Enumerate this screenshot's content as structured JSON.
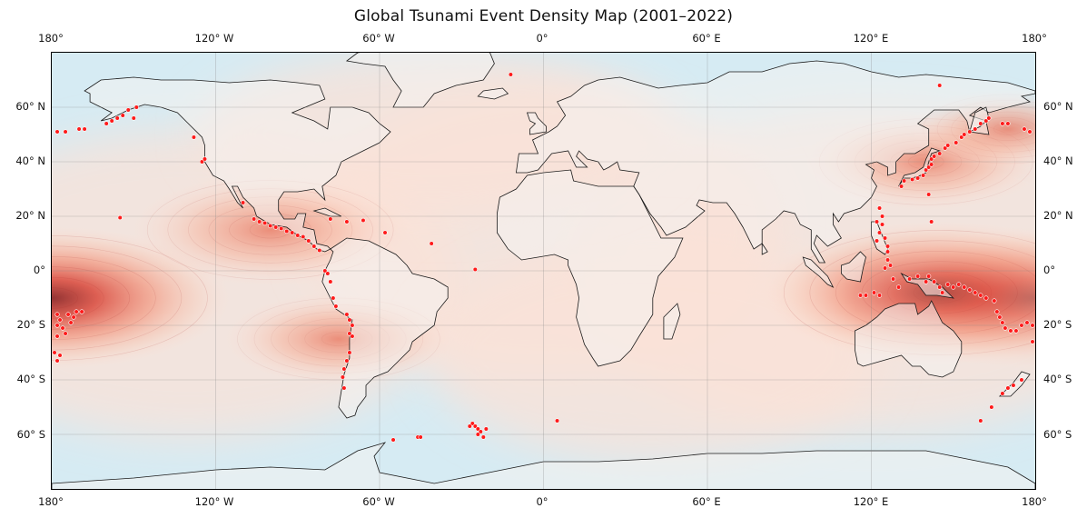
{
  "title": "Global Tsunami Event Density Map (2001–2022)",
  "lon_ticks": [
    "180°",
    "120° W",
    "60° W",
    "0°",
    "60° E",
    "120° E",
    "180°"
  ],
  "lat_ticks": [
    "60° N",
    "40° N",
    "20° N",
    "0°",
    "20° S",
    "40° S",
    "60° S"
  ],
  "colors": {
    "ocean": "#d6ebf3",
    "land": "#f2f2f2",
    "event": "#ff1a1a",
    "density_low": "#fde4da",
    "density_high": "#c0392b"
  },
  "chart_data": {
    "type": "scatter",
    "projection": "equirectangular",
    "lon_range": [
      -180,
      180
    ],
    "lat_range": [
      -80,
      80
    ],
    "density_hotspots": [
      {
        "lon": -180,
        "lat": -10,
        "intensity": 1.0
      },
      {
        "lon": 145,
        "lat": -8,
        "intensity": 1.0
      },
      {
        "lon": -100,
        "lat": 15,
        "intensity": 0.7
      },
      {
        "lon": -75,
        "lat": -25,
        "intensity": 0.5
      },
      {
        "lon": 140,
        "lat": 40,
        "intensity": 0.55
      },
      {
        "lon": 170,
        "lat": 52,
        "intensity": 0.35
      }
    ],
    "events": [
      {
        "lon": -178,
        "lat": 51
      },
      {
        "lon": -175,
        "lat": 51
      },
      {
        "lon": -170,
        "lat": 52
      },
      {
        "lon": -168,
        "lat": 52
      },
      {
        "lon": -160,
        "lat": 54
      },
      {
        "lon": -158,
        "lat": 55
      },
      {
        "lon": -156,
        "lat": 56
      },
      {
        "lon": -154,
        "lat": 57
      },
      {
        "lon": -152,
        "lat": 59
      },
      {
        "lon": -149,
        "lat": 60
      },
      {
        "lon": -150,
        "lat": 56
      },
      {
        "lon": -128,
        "lat": 49
      },
      {
        "lon": -125,
        "lat": 40
      },
      {
        "lon": -124,
        "lat": 41
      },
      {
        "lon": -155,
        "lat": 19.5
      },
      {
        "lon": -110,
        "lat": 25
      },
      {
        "lon": -106,
        "lat": 19
      },
      {
        "lon": -104,
        "lat": 18
      },
      {
        "lon": -102,
        "lat": 17.5
      },
      {
        "lon": -100,
        "lat": 16.5
      },
      {
        "lon": -98,
        "lat": 16
      },
      {
        "lon": -96,
        "lat": 15.5
      },
      {
        "lon": -94,
        "lat": 14.5
      },
      {
        "lon": -92,
        "lat": 14
      },
      {
        "lon": -90,
        "lat": 13
      },
      {
        "lon": -88,
        "lat": 12.5
      },
      {
        "lon": -86,
        "lat": 11
      },
      {
        "lon": -84,
        "lat": 9
      },
      {
        "lon": -82,
        "lat": 7.5
      },
      {
        "lon": -78,
        "lat": 19
      },
      {
        "lon": -72,
        "lat": 18
      },
      {
        "lon": -66,
        "lat": 18.5
      },
      {
        "lon": -58,
        "lat": 14
      },
      {
        "lon": -41,
        "lat": 10
      },
      {
        "lon": -25,
        "lat": 0.5
      },
      {
        "lon": -80,
        "lat": 0
      },
      {
        "lon": -79,
        "lat": -1
      },
      {
        "lon": -78,
        "lat": -4
      },
      {
        "lon": -77,
        "lat": -10
      },
      {
        "lon": -76,
        "lat": -13
      },
      {
        "lon": -72,
        "lat": -16
      },
      {
        "lon": -71,
        "lat": -18
      },
      {
        "lon": -71,
        "lat": -23
      },
      {
        "lon": -70,
        "lat": -24
      },
      {
        "lon": -71,
        "lat": -30
      },
      {
        "lon": -72,
        "lat": -33
      },
      {
        "lon": -73,
        "lat": -36
      },
      {
        "lon": -73.5,
        "lat": -39
      },
      {
        "lon": -73,
        "lat": -43
      },
      {
        "lon": -70,
        "lat": -20
      },
      {
        "lon": -178,
        "lat": -16
      },
      {
        "lon": -177,
        "lat": -18
      },
      {
        "lon": -178,
        "lat": -20
      },
      {
        "lon": -176,
        "lat": -21
      },
      {
        "lon": -174,
        "lat": -16
      },
      {
        "lon": -173,
        "lat": -19
      },
      {
        "lon": -171,
        "lat": -15
      },
      {
        "lon": -175,
        "lat": -23
      },
      {
        "lon": -178,
        "lat": -24
      },
      {
        "lon": -179,
        "lat": -30
      },
      {
        "lon": -177,
        "lat": -31
      },
      {
        "lon": -178,
        "lat": -33
      },
      {
        "lon": -169,
        "lat": -15
      },
      {
        "lon": -172,
        "lat": -17
      },
      {
        "lon": -26,
        "lat": -56
      },
      {
        "lon": -25,
        "lat": -57
      },
      {
        "lon": -24,
        "lat": -58
      },
      {
        "lon": -23,
        "lat": -59
      },
      {
        "lon": -24,
        "lat": -60
      },
      {
        "lon": -22,
        "lat": -61
      },
      {
        "lon": -21,
        "lat": -58
      },
      {
        "lon": -27,
        "lat": -57
      },
      {
        "lon": -46,
        "lat": -61
      },
      {
        "lon": -45,
        "lat": -61
      },
      {
        "lon": -55,
        "lat": -62
      },
      {
        "lon": 5,
        "lat": -55
      },
      {
        "lon": 123,
        "lat": 23
      },
      {
        "lon": 122,
        "lat": 18
      },
      {
        "lon": 123,
        "lat": 14
      },
      {
        "lon": 125,
        "lat": 12
      },
      {
        "lon": 126,
        "lat": 9
      },
      {
        "lon": 126,
        "lat": 7
      },
      {
        "lon": 126,
        "lat": 4
      },
      {
        "lon": 125,
        "lat": 1
      },
      {
        "lon": 127,
        "lat": 2
      },
      {
        "lon": 124,
        "lat": 20
      },
      {
        "lon": 124,
        "lat": 17
      },
      {
        "lon": 122,
        "lat": 11
      },
      {
        "lon": 128,
        "lat": -3
      },
      {
        "lon": 130,
        "lat": -6
      },
      {
        "lon": 134,
        "lat": -3
      },
      {
        "lon": 137,
        "lat": -2
      },
      {
        "lon": 140,
        "lat": -4
      },
      {
        "lon": 143,
        "lat": -4
      },
      {
        "lon": 145,
        "lat": -6
      },
      {
        "lon": 148,
        "lat": -5
      },
      {
        "lon": 150,
        "lat": -6
      },
      {
        "lon": 152,
        "lat": -5
      },
      {
        "lon": 154,
        "lat": -6
      },
      {
        "lon": 156,
        "lat": -7
      },
      {
        "lon": 158,
        "lat": -8
      },
      {
        "lon": 160,
        "lat": -9
      },
      {
        "lon": 162,
        "lat": -10
      },
      {
        "lon": 165,
        "lat": -11
      },
      {
        "lon": 166,
        "lat": -15
      },
      {
        "lon": 167,
        "lat": -17
      },
      {
        "lon": 168,
        "lat": -19
      },
      {
        "lon": 169,
        "lat": -21
      },
      {
        "lon": 171,
        "lat": -22
      },
      {
        "lon": 173,
        "lat": -22
      },
      {
        "lon": 175,
        "lat": -20
      },
      {
        "lon": 177,
        "lat": -19
      },
      {
        "lon": 179,
        "lat": -20
      },
      {
        "lon": 179,
        "lat": -26
      },
      {
        "lon": 123,
        "lat": -9
      },
      {
        "lon": 121,
        "lat": -8
      },
      {
        "lon": 118,
        "lat": -9
      },
      {
        "lon": 116,
        "lat": -9
      },
      {
        "lon": 141,
        "lat": -2
      },
      {
        "lon": 146,
        "lat": -8
      },
      {
        "lon": 142,
        "lat": 18
      },
      {
        "lon": 141,
        "lat": 28
      },
      {
        "lon": 131,
        "lat": 31
      },
      {
        "lon": 132,
        "lat": 33
      },
      {
        "lon": 135,
        "lat": 33.5
      },
      {
        "lon": 137,
        "lat": 34
      },
      {
        "lon": 139,
        "lat": 35
      },
      {
        "lon": 140,
        "lat": 37
      },
      {
        "lon": 141,
        "lat": 38
      },
      {
        "lon": 142,
        "lat": 39
      },
      {
        "lon": 142,
        "lat": 41
      },
      {
        "lon": 143,
        "lat": 42
      },
      {
        "lon": 145,
        "lat": 43
      },
      {
        "lon": 147,
        "lat": 45
      },
      {
        "lon": 148,
        "lat": 46
      },
      {
        "lon": 151,
        "lat": 47
      },
      {
        "lon": 153,
        "lat": 49
      },
      {
        "lon": 154,
        "lat": 50
      },
      {
        "lon": 156,
        "lat": 51
      },
      {
        "lon": 158,
        "lat": 52
      },
      {
        "lon": 160,
        "lat": 54
      },
      {
        "lon": 162,
        "lat": 55
      },
      {
        "lon": 163,
        "lat": 56
      },
      {
        "lon": 168,
        "lat": 54
      },
      {
        "lon": 170,
        "lat": 54
      },
      {
        "lon": 176,
        "lat": 52
      },
      {
        "lon": 178,
        "lat": 51
      },
      {
        "lon": 145,
        "lat": 68
      },
      {
        "lon": 160,
        "lat": -55
      },
      {
        "lon": 164,
        "lat": -50
      },
      {
        "lon": 168,
        "lat": -45
      },
      {
        "lon": 170,
        "lat": -43
      },
      {
        "lon": 172,
        "lat": -42
      },
      {
        "lon": 175,
        "lat": -40
      },
      {
        "lon": -12,
        "lat": 72
      }
    ]
  }
}
